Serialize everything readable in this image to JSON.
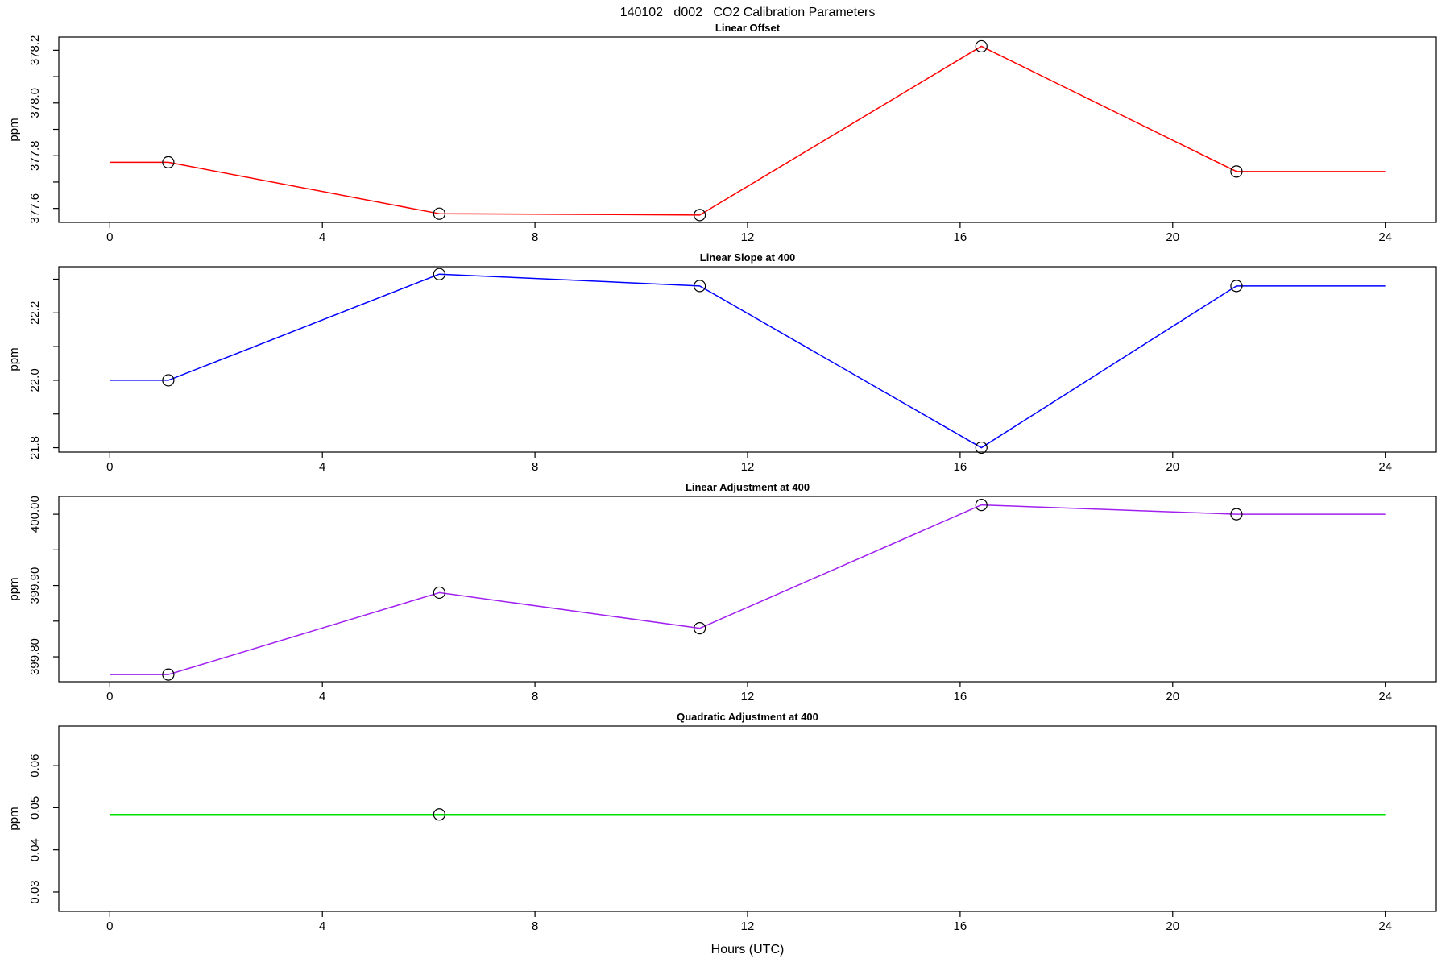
{
  "figure_title": "140102   d002   CO2 Calibration Parameters",
  "x_axis_title": "Hours (UTC)",
  "chart_data": [
    {
      "type": "line",
      "title": "Linear Offset",
      "ylabel": "ppm",
      "line_color": "#ff0000",
      "marker_color": "#000000",
      "x": [
        0,
        1.1,
        6.2,
        11.1,
        16.4,
        21.2,
        24
      ],
      "y": [
        377.775,
        377.775,
        377.58,
        377.575,
        378.215,
        377.74,
        377.74
      ],
      "marker_x": [
        1.1,
        6.2,
        11.1,
        16.4,
        21.2
      ],
      "marker_y": [
        377.775,
        377.58,
        377.575,
        378.215,
        377.74
      ],
      "xlim": [
        -0.96,
        24.96
      ],
      "ylim": [
        377.547,
        378.25
      ],
      "xticks": [
        0,
        4,
        8,
        12,
        16,
        20,
        24
      ],
      "yticks": [
        377.6,
        377.7,
        377.8,
        377.9,
        378.0,
        378.1,
        378.2
      ],
      "ytick_labels": [
        "377.6",
        "",
        "377.8",
        "",
        "378.0",
        "",
        "378.2"
      ],
      "grid": false,
      "legend": "none"
    },
    {
      "type": "line",
      "title": "Linear Slope at 400",
      "ylabel": "ppm",
      "line_color": "#0000ff",
      "marker_color": "#000000",
      "x": [
        0,
        1.1,
        6.2,
        11.1,
        16.4,
        21.2,
        24
      ],
      "y": [
        22.0,
        22.0,
        22.315,
        22.28,
        21.8,
        22.28,
        22.28
      ],
      "marker_x": [
        1.1,
        6.2,
        11.1,
        16.4,
        21.2
      ],
      "marker_y": [
        22.0,
        22.315,
        22.28,
        21.8,
        22.28
      ],
      "xlim": [
        -0.96,
        24.96
      ],
      "ylim": [
        21.787,
        22.337
      ],
      "xticks": [
        0,
        4,
        8,
        12,
        16,
        20,
        24
      ],
      "yticks": [
        21.8,
        21.9,
        22.0,
        22.1,
        22.2,
        22.3
      ],
      "ytick_labels": [
        "21.8",
        "",
        "22.0",
        "",
        "22.2",
        ""
      ],
      "grid": false,
      "legend": "none"
    },
    {
      "type": "line",
      "title": "Linear Adjustment at 400",
      "ylabel": "ppm",
      "line_color": "#a020f0",
      "marker_color": "#000000",
      "x": [
        0,
        1.1,
        6.2,
        11.1,
        16.4,
        21.2,
        24
      ],
      "y": [
        399.775,
        399.775,
        399.89,
        399.84,
        400.013,
        400.0,
        400.0
      ],
      "marker_x": [
        1.1,
        6.2,
        11.1,
        16.4,
        21.2
      ],
      "marker_y": [
        399.775,
        399.89,
        399.84,
        400.013,
        400.0
      ],
      "xlim": [
        -0.96,
        24.96
      ],
      "ylim": [
        399.765,
        400.025
      ],
      "xticks": [
        0,
        4,
        8,
        12,
        16,
        20,
        24
      ],
      "yticks": [
        399.8,
        399.85,
        399.9,
        399.95,
        400.0
      ],
      "ytick_labels": [
        "399.80",
        "",
        "399.90",
        "",
        "400.00"
      ],
      "grid": false,
      "legend": "none"
    },
    {
      "type": "line",
      "title": "Quadratic Adjustment at 400",
      "ylabel": "ppm",
      "line_color": "#00e000",
      "marker_color": "#000000",
      "x": [
        0,
        24
      ],
      "y": [
        0.0484,
        0.0484
      ],
      "marker_x": [
        6.2
      ],
      "marker_y": [
        0.0484
      ],
      "xlim": [
        -0.96,
        24.96
      ],
      "ylim": [
        0.0254,
        0.0694
      ],
      "xticks": [
        0,
        4,
        8,
        12,
        16,
        20,
        24
      ],
      "yticks": [
        0.03,
        0.04,
        0.05,
        0.06
      ],
      "ytick_labels": [
        "0.03",
        "0.04",
        "0.05",
        "0.06"
      ],
      "grid": false,
      "legend": "none"
    }
  ]
}
